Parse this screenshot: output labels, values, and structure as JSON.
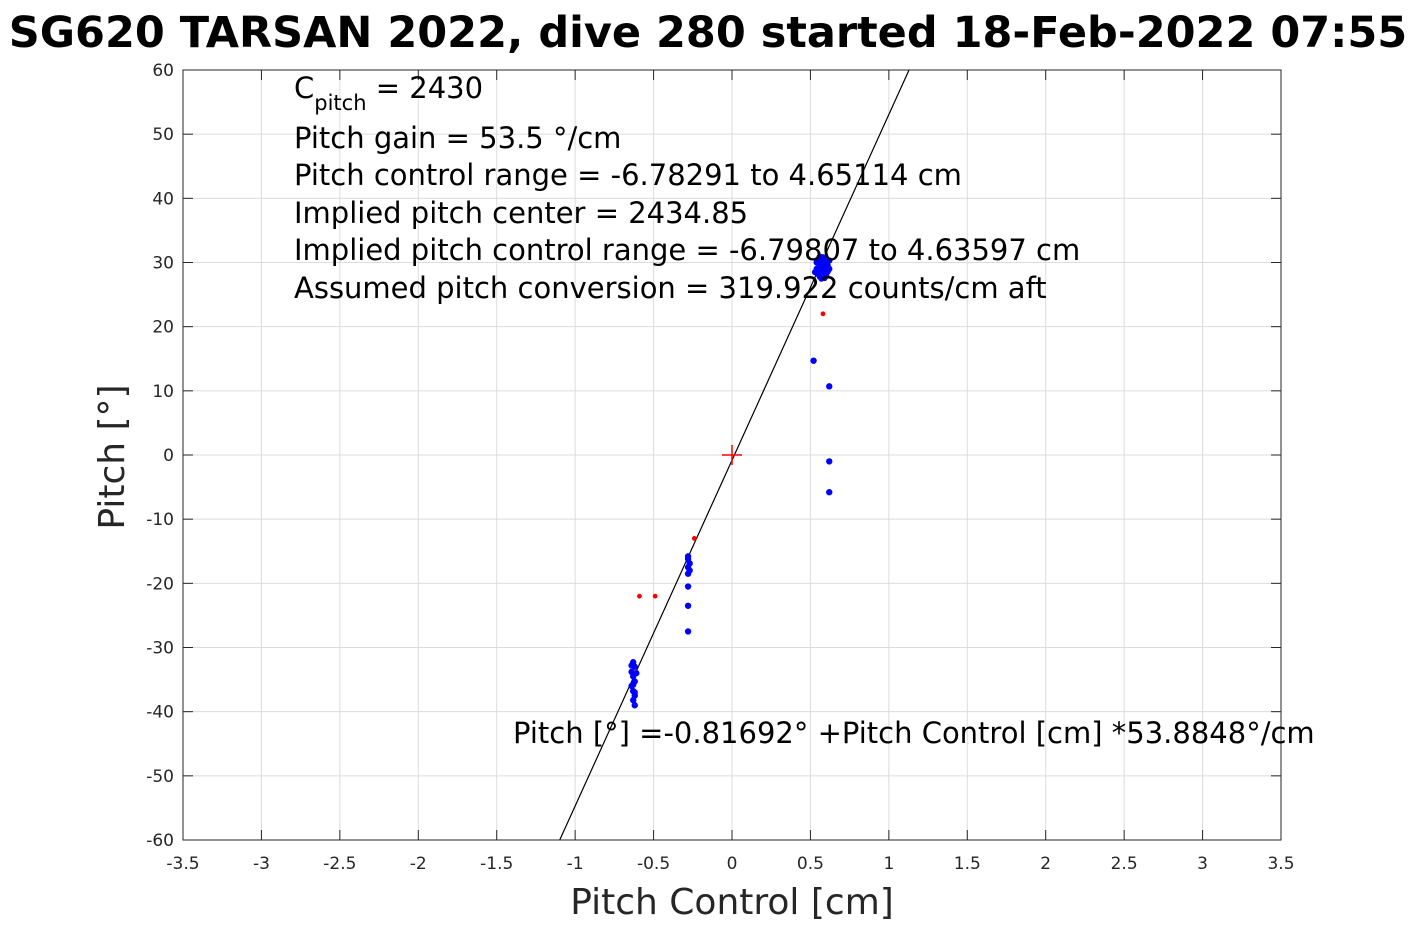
{
  "chart_data": {
    "type": "scatter",
    "title": "SG620 TARSAN 2022, dive 280 started 18-Feb-2022 07:55",
    "xlabel": "Pitch Control [cm]",
    "ylabel": "Pitch [°]",
    "xlim": [
      -3.5,
      3.5
    ],
    "ylim": [
      -60,
      60
    ],
    "xticks": [
      "-3.5",
      "-3",
      "-2.5",
      "-2",
      "-1.5",
      "-1",
      "-0.5",
      "0",
      "0.5",
      "1",
      "1.5",
      "2",
      "2.5",
      "3",
      "3.5"
    ],
    "yticks": [
      "60",
      "50",
      "40",
      "30",
      "20",
      "10",
      "0",
      "-10",
      "-20",
      "-30",
      "-40",
      "-50",
      "-60"
    ],
    "grid": true,
    "annotations": {
      "c_pitch_main": "C",
      "c_pitch_sub": "pitch",
      "c_pitch_value": " = 2430",
      "pitch_gain": "Pitch gain = 53.5 °/cm",
      "control_range": "Pitch control range = -6.78291 to 4.65114 cm",
      "implied_center": "Implied pitch center = 2434.85",
      "implied_range": "Implied pitch control range = -6.79807 to 4.63597 cm",
      "conversion": "Assumed pitch conversion = 319.922 counts/cm aft",
      "fit_equation": "Pitch [°] =-0.81692° +Pitch Control [cm] *53.8848°/cm"
    },
    "fit_line": {
      "intercept": -0.81692,
      "slope": 53.8848,
      "color": "#000000"
    },
    "center_marker": {
      "x": 0,
      "y": 0,
      "color": "#ff0000"
    },
    "series": [
      {
        "color": "#0000ff",
        "points": [
          [
            0.55,
            30.5
          ],
          [
            0.56,
            29.5
          ],
          [
            0.57,
            28.5
          ],
          [
            0.58,
            29.0
          ],
          [
            0.59,
            30.0
          ],
          [
            0.6,
            28.0
          ],
          [
            0.61,
            29.5
          ],
          [
            0.56,
            27.8
          ],
          [
            0.58,
            30.8
          ],
          [
            0.6,
            30.6
          ],
          [
            0.54,
            29.0
          ],
          [
            0.57,
            30.2
          ],
          [
            0.59,
            27.6
          ],
          [
            0.61,
            28.6
          ],
          [
            0.55,
            28.2
          ],
          [
            0.58,
            28.8
          ],
          [
            0.62,
            30.3
          ],
          [
            0.53,
            28.5
          ],
          [
            0.56,
            30.9
          ],
          [
            0.6,
            29.2
          ],
          [
            0.57,
            27.5
          ],
          [
            0.59,
            29.8
          ],
          [
            0.62,
            29.0
          ],
          [
            0.54,
            30.0
          ],
          [
            0.52,
            14.7
          ],
          [
            0.62,
            10.7
          ],
          [
            0.62,
            -1.0
          ],
          [
            0.62,
            -5.8
          ],
          [
            -0.28,
            -15.8
          ],
          [
            -0.28,
            -16.2
          ],
          [
            -0.27,
            -16.9
          ],
          [
            -0.28,
            -17.5
          ],
          [
            -0.27,
            -18.0
          ],
          [
            -0.28,
            -18.5
          ],
          [
            -0.28,
            -20.5
          ],
          [
            -0.28,
            -23.5
          ],
          [
            -0.28,
            -27.5
          ],
          [
            -0.63,
            -32.3
          ],
          [
            -0.62,
            -33.0
          ],
          [
            -0.64,
            -33.8
          ],
          [
            -0.63,
            -34.5
          ],
          [
            -0.62,
            -35.3
          ],
          [
            -0.64,
            -36.0
          ],
          [
            -0.63,
            -36.8
          ],
          [
            -0.62,
            -37.5
          ],
          [
            -0.63,
            -38.2
          ],
          [
            -0.62,
            -39.0
          ],
          [
            -0.64,
            -32.8
          ],
          [
            -0.61,
            -34.0
          ],
          [
            -0.63,
            -35.8
          ],
          [
            -0.62,
            -37.0
          ]
        ]
      },
      {
        "color": "#ff0000",
        "points": [
          [
            0.58,
            22.0
          ],
          [
            -0.59,
            -22.0
          ],
          [
            -0.49,
            -22.0
          ],
          [
            -0.24,
            -13.0
          ]
        ]
      }
    ]
  }
}
